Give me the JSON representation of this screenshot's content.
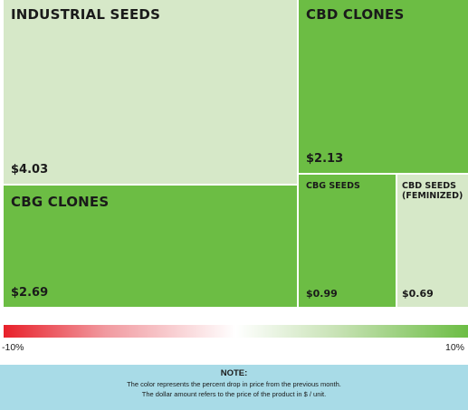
{
  "chart_data": {
    "type": "treemap",
    "items": [
      {
        "name": "INDUSTRIAL SEEDS",
        "value_label": "$4.03",
        "value": 4.03,
        "color": "#d6e8c8"
      },
      {
        "name": "CBD CLONES",
        "value_label": "$2.13",
        "value": 2.13,
        "color": "#6cbd44"
      },
      {
        "name": "CBG CLONES",
        "value_label": "$2.69",
        "value": 2.69,
        "color": "#6cbd44"
      },
      {
        "name": "CBG SEEDS",
        "value_label": "$0.99",
        "value": 0.99,
        "color": "#6cbd44"
      },
      {
        "name": "CBD SEEDS\n(FEMINIZED)",
        "value_label": "$0.69",
        "value": 0.69,
        "color": "#d6e8c8"
      }
    ],
    "color_scale": {
      "min_label": "-10%",
      "max_label": "10%",
      "min_color": "#e8202a",
      "mid_color": "#ffffff",
      "max_color": "#6cbd44"
    }
  },
  "note": {
    "title": "NOTE:",
    "line1": "The color represents the percent drop in price from the previous month.",
    "line2": "The dollar amount refers to the price of the product in $ / unit."
  }
}
